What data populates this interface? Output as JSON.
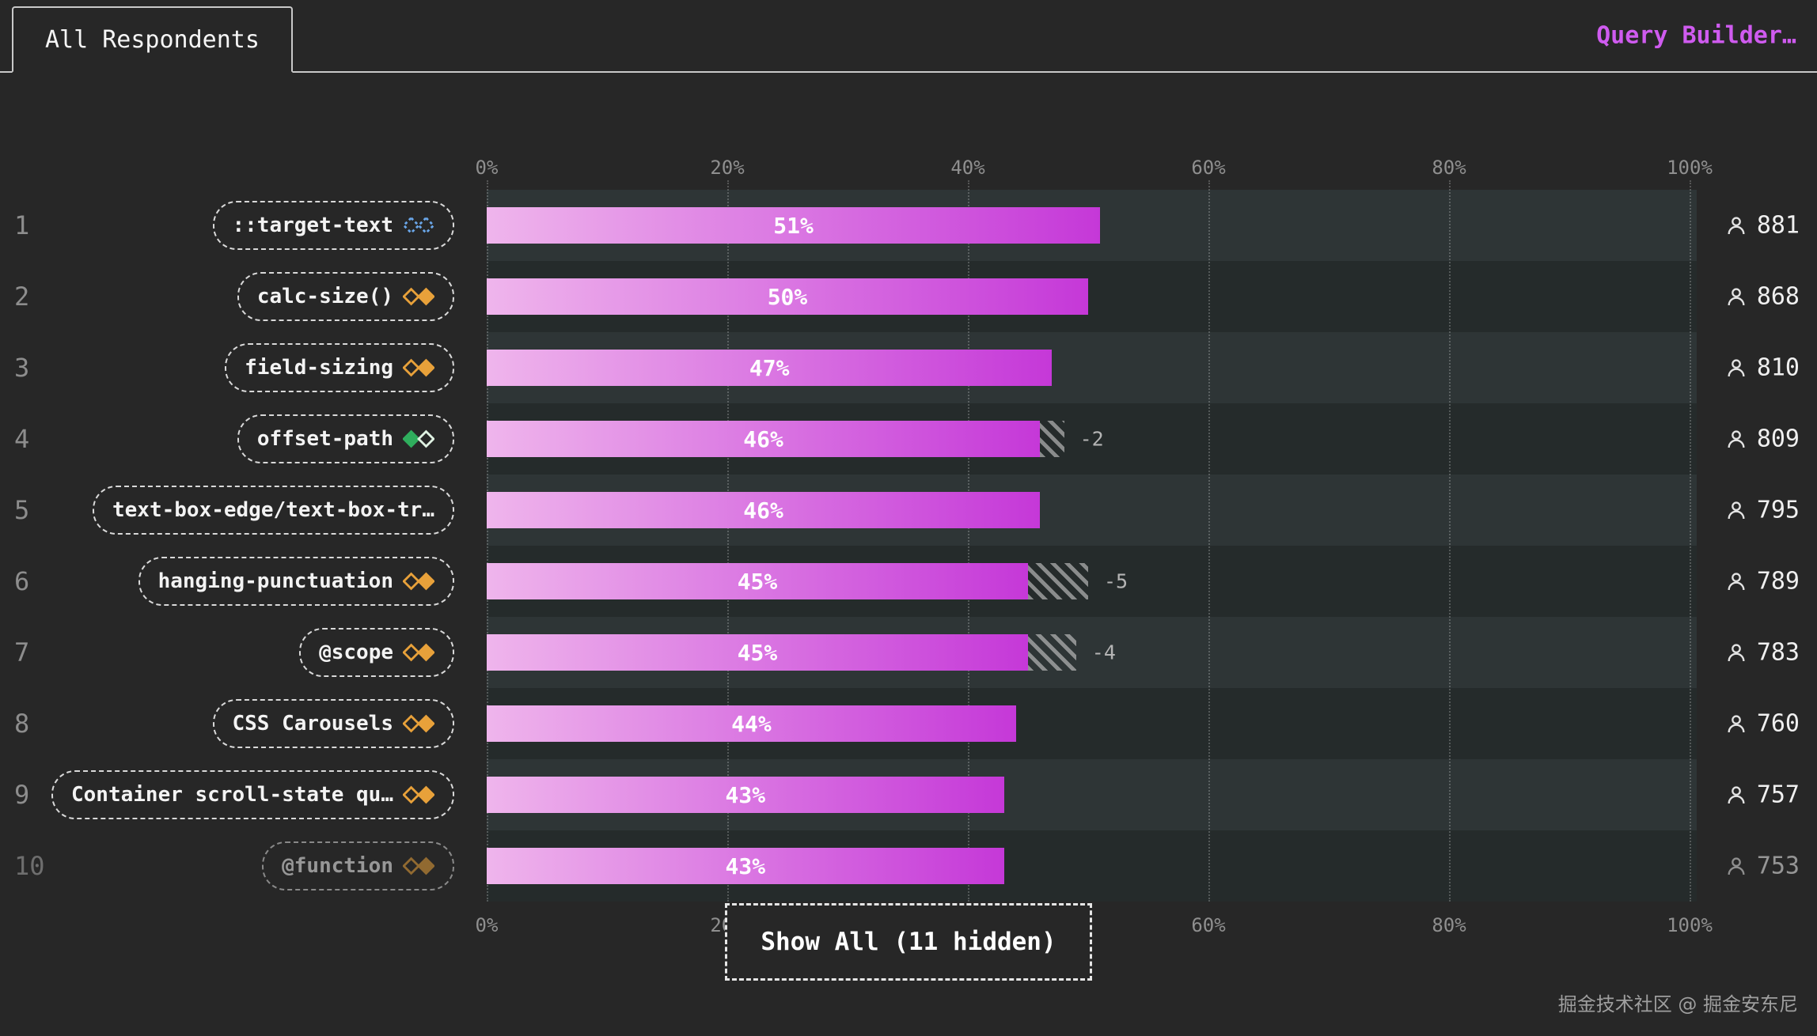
{
  "header": {
    "tab_label": "All Respondents",
    "link_label": "Query Builder…"
  },
  "chart_data": {
    "type": "bar",
    "orientation": "horizontal",
    "title": "",
    "xlabel": "",
    "ylabel": "",
    "x_ticks": [
      "0%",
      "20%",
      "40%",
      "60%",
      "80%",
      "100%"
    ],
    "xlim": [
      0,
      100
    ],
    "grid": true,
    "ranks": [
      "1",
      "2",
      "3",
      "4",
      "5",
      "6",
      "7",
      "8",
      "9",
      "10"
    ],
    "categories": [
      "::target-text",
      "calc-size()",
      "field-sizing",
      "offset-path",
      "text-box-edge/text-box-tr…",
      "hanging-punctuation",
      "@scope",
      "CSS Carousels",
      "Container scroll-state qu…",
      "@function"
    ],
    "values": [
      51,
      50,
      47,
      46,
      46,
      45,
      45,
      44,
      43,
      43
    ],
    "value_labels": [
      "51%",
      "50%",
      "47%",
      "46%",
      "46%",
      "45%",
      "45%",
      "44%",
      "43%",
      "43%"
    ],
    "deltas": [
      null,
      null,
      null,
      -2,
      null,
      -5,
      -4,
      null,
      null,
      null
    ],
    "delta_labels": [
      null,
      null,
      null,
      "-2",
      null,
      "-5",
      "-4",
      null,
      null,
      null
    ],
    "respondent_counts": [
      "881",
      "868",
      "810",
      "809",
      "795",
      "789",
      "783",
      "760",
      "757",
      "753"
    ],
    "baseline_icons": [
      "newly",
      "limited",
      "limited",
      "widely",
      null,
      "limited",
      "limited",
      "limited",
      "limited",
      "limited"
    ],
    "faded": [
      false,
      false,
      false,
      false,
      false,
      false,
      false,
      false,
      false,
      true
    ]
  },
  "show_all_label": "Show All (11 hidden)",
  "footer": {
    "watermark": "掘金技术社区 @ 掘金安东尼"
  },
  "colors": {
    "accent_bar_start": "#efb5ec",
    "accent_bar_end": "#c538d8",
    "link": "#cf5bef",
    "baseline_limited": "#e8a13a",
    "baseline_newly": "#6aa6e8",
    "baseline_widely": "#2fae5d"
  }
}
